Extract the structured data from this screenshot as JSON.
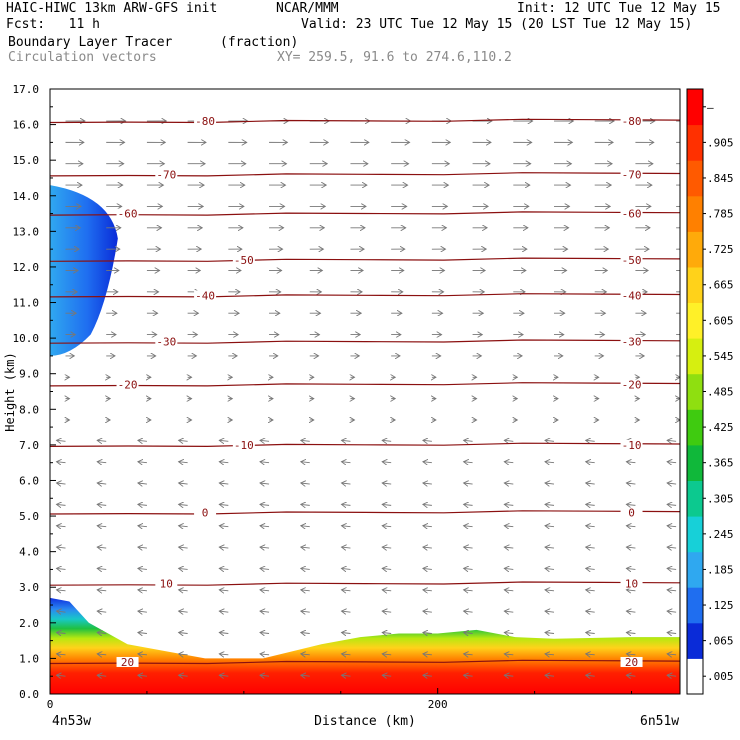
{
  "header": {
    "title": "HAIC-HIWC 13km ARW-GFS init",
    "org": "NCAR/MMM",
    "init": "Init: 12 UTC Tue 12 May 15",
    "fcst": "Fcst:   11 h",
    "valid": "Valid: 23 UTC Tue 12 May 15 (20 LST Tue 12 May 15)",
    "field": "Boundary Layer Tracer",
    "units": "(fraction)",
    "overlay": "Circulation vectors",
    "xy": "XY= 259.5, 91.6 to 274.6,110.2"
  },
  "chart_data": {
    "type": "heatmap",
    "title": "Boundary Layer Tracer",
    "units": "(fraction)",
    "xlabel": "Distance (km)",
    "ylabel": "Height (km)",
    "xlim": [
      0,
      325
    ],
    "ylim": [
      0,
      17
    ],
    "x_ticks": [
      "0",
      "200"
    ],
    "x_end_labels": [
      "4n53w",
      "6n51w"
    ],
    "y_ticks": [
      "0.0",
      "1.0",
      "2.0",
      "3.0",
      "4.0",
      "5.0",
      "6.0",
      "7.0",
      "8.0",
      "9.0",
      "10.0",
      "11.0",
      "12.0",
      "13.0",
      "14.0",
      "15.0",
      "16.0",
      "17.0"
    ],
    "colorbar": {
      "labels": [
        ".005",
        ".065",
        ".125",
        ".185",
        ".245",
        ".305",
        ".365",
        ".425",
        ".485",
        ".545",
        ".605",
        ".665",
        ".725",
        ".785",
        ".845",
        ".905",
        "–"
      ],
      "colors": [
        "#ffffff",
        "#0a2bd8",
        "#1f6ef0",
        "#2fa8f0",
        "#17d0d8",
        "#0cc98f",
        "#10b83a",
        "#3fcb10",
        "#8fdf10",
        "#d6ef10",
        "#fff028",
        "#ffd21a",
        "#ffaa0a",
        "#ff8000",
        "#ff5a00",
        "#ff3000",
        "#ff0000"
      ]
    },
    "contour_lines": [
      {
        "label": "20",
        "height_km": 0.9
      },
      {
        "label": "10",
        "height_km": 3.1
      },
      {
        "label": "0",
        "height_km": 5.1
      },
      {
        "label": "-10",
        "height_km": 7.0
      },
      {
        "label": "-20",
        "height_km": 8.7
      },
      {
        "label": "-30",
        "height_km": 9.9
      },
      {
        "label": "-40",
        "height_km": 11.2
      },
      {
        "label": "-50",
        "height_km": 12.2
      },
      {
        "label": "-60",
        "height_km": 13.5
      },
      {
        "label": "-70",
        "height_km": 14.6
      },
      {
        "label": "-80",
        "height_km": 16.1
      }
    ],
    "tracer_layer_top_km": [
      [
        0,
        2.7
      ],
      [
        10,
        2.6
      ],
      [
        20,
        2.0
      ],
      [
        40,
        1.4
      ],
      [
        80,
        1.0
      ],
      [
        110,
        1.0
      ],
      [
        140,
        1.4
      ],
      [
        160,
        1.6
      ],
      [
        180,
        1.7
      ],
      [
        200,
        1.7
      ],
      [
        220,
        1.8
      ],
      [
        240,
        1.6
      ],
      [
        260,
        1.55
      ],
      [
        300,
        1.6
      ],
      [
        325,
        1.6
      ]
    ],
    "upper_plume": {
      "x_range_km": [
        0,
        35
      ],
      "height_range_km": [
        9.5,
        14.3
      ]
    }
  }
}
